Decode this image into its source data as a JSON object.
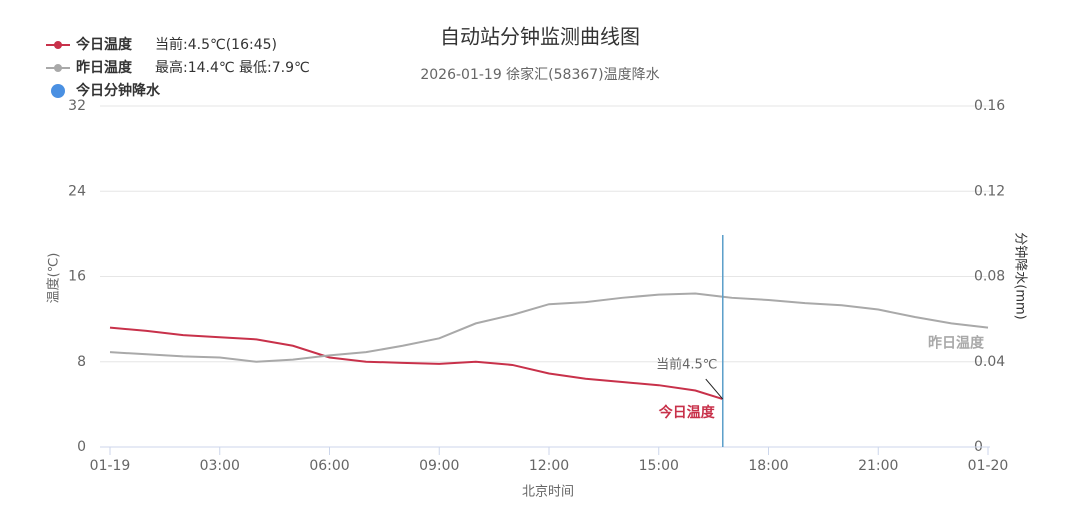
{
  "chart_data": {
    "type": "line",
    "title": "自动站分钟监测曲线图",
    "subtitle": "2026-01-19 徐家汇(58367)温度降水",
    "x_label": "北京时间",
    "y_label": "温度(℃)",
    "y2_label": "分钟降水(mm)",
    "x": [
      0,
      1,
      2,
      3,
      4,
      5,
      6,
      7,
      8,
      9,
      10,
      11,
      12,
      13,
      14,
      15,
      16,
      16.75,
      17,
      18,
      19,
      20,
      21,
      22,
      23,
      24
    ],
    "series": [
      {
        "name": "今日温度",
        "note": "当前:4.5℃(16:45)",
        "color": "#c8314a",
        "end_label": "今日温度",
        "values": [
          11.2,
          10.9,
          10.5,
          10.3,
          10.1,
          9.5,
          8.4,
          8.0,
          7.9,
          7.8,
          8.0,
          7.7,
          6.9,
          6.4,
          6.1,
          5.8,
          5.3,
          4.5,
          null,
          null,
          null,
          null,
          null,
          null,
          null,
          null
        ]
      },
      {
        "name": "昨日温度",
        "note": "最高:14.4℃ 最低:7.9℃",
        "color": "#a9a9a9",
        "end_label": "昨日温度",
        "values": [
          8.9,
          8.7,
          8.5,
          8.4,
          8.0,
          8.2,
          8.6,
          8.9,
          9.5,
          10.2,
          11.6,
          12.4,
          13.4,
          13.6,
          14.0,
          14.3,
          14.4,
          14.1,
          14.0,
          13.8,
          13.5,
          13.3,
          12.9,
          12.2,
          11.6,
          11.2
        ]
      },
      {
        "name": "今日分钟降水",
        "color": "#4a90e2",
        "axis": "y2"
      }
    ],
    "annotation": "当前4.5℃",
    "current_line_color": "#5a9ec9",
    "xlim": [
      0,
      24
    ],
    "xticks": [
      {
        "value": 0,
        "label": "01-19"
      },
      {
        "value": 3,
        "label": "03:00"
      },
      {
        "value": 6,
        "label": "06:00"
      },
      {
        "value": 9,
        "label": "09:00"
      },
      {
        "value": 12,
        "label": "12:00"
      },
      {
        "value": 15,
        "label": "15:00"
      },
      {
        "value": 18,
        "label": "18:00"
      },
      {
        "value": 21,
        "label": "21:00"
      },
      {
        "value": 24,
        "label": "01-20"
      }
    ],
    "ylim": [
      0,
      32
    ],
    "yticks": [
      0,
      8,
      16,
      24,
      32
    ],
    "y2lim": [
      0,
      0.16
    ],
    "y2ticks": [
      0,
      0.04,
      0.08,
      0.12,
      0.16
    ],
    "grid": true
  }
}
